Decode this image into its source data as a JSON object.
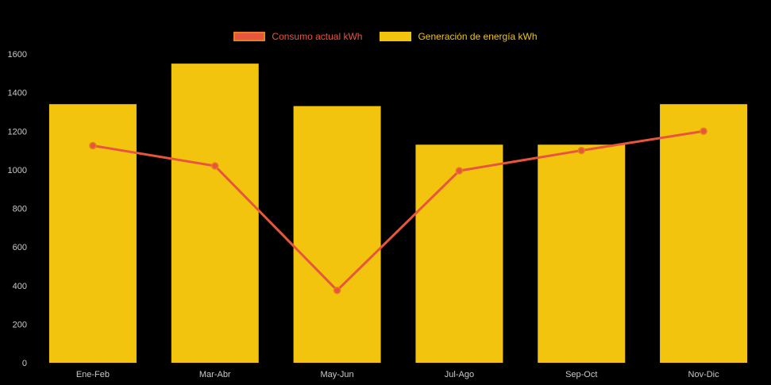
{
  "chart_data": {
    "type": "bar",
    "title": "",
    "categories": [
      "Ene-Feb",
      "Mar-Abr",
      "May-Jun",
      "Jul-Ago",
      "Sep-Oct",
      "Nov-Dic"
    ],
    "series": [
      {
        "name": "Consumo actual kWh",
        "type": "line",
        "color": "#e8553e",
        "border": "#e67e22",
        "values": [
          1125,
          1020,
          375,
          995,
          1100,
          1200
        ]
      },
      {
        "name": "Generación de energía kWh",
        "type": "bar",
        "color": "#f2c40e",
        "border": "#f2c40e",
        "values": [
          1340,
          1550,
          1330,
          1130,
          1130,
          1340
        ]
      }
    ],
    "xlabel": "",
    "ylabel": "",
    "ylim": [
      0,
      1600
    ],
    "ytick_step": 200,
    "legend_position": "top",
    "grid": false
  },
  "colors": {
    "background": "#000000",
    "tick_label": "#c9c9c9"
  }
}
